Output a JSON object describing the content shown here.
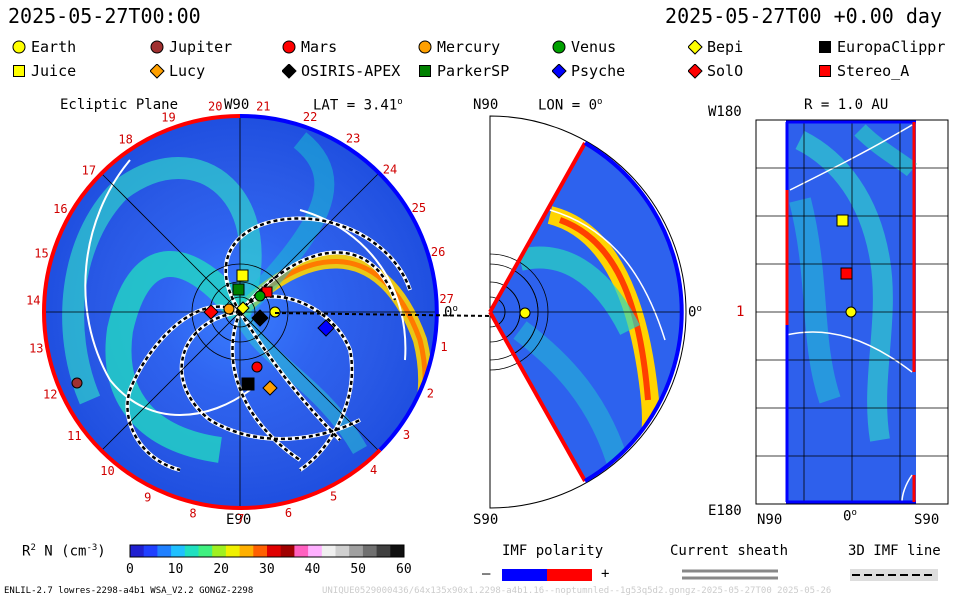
{
  "header": {
    "datetime": "2025-05-27T00:00",
    "offset": "2025-05-27T00 +0.00 day"
  },
  "legend": [
    {
      "label": "Earth",
      "shape": "circle",
      "color": "#ffff00"
    },
    {
      "label": "Jupiter",
      "shape": "circle",
      "color": "#a03030"
    },
    {
      "label": "Mars",
      "shape": "circle",
      "color": "#ff0000"
    },
    {
      "label": "Mercury",
      "shape": "circle",
      "color": "#ffa000"
    },
    {
      "label": "Venus",
      "shape": "circle",
      "color": "#00a000"
    },
    {
      "label": "Bepi",
      "shape": "diamond",
      "color": "#ffff00"
    },
    {
      "label": "EuropaClippr",
      "shape": "square",
      "color": "#000000"
    },
    {
      "label": "Juice",
      "shape": "square",
      "color": "#ffff00"
    },
    {
      "label": "Lucy",
      "shape": "diamond",
      "color": "#ffa000"
    },
    {
      "label": "OSIRIS-APEX",
      "shape": "diamond",
      "color": "#000000"
    },
    {
      "label": "ParkerSP",
      "shape": "square",
      "color": "#008000"
    },
    {
      "label": "Psyche",
      "shape": "diamond",
      "color": "#0000ff"
    },
    {
      "label": "SolO",
      "shape": "diamond",
      "color": "#ff0000"
    },
    {
      "label": "Stereo_A",
      "shape": "square",
      "color": "#ff0000"
    }
  ],
  "ecliptic": {
    "title": "Ecliptic Plane",
    "top_label": "W90",
    "lat_label": "LAT = 3.41",
    "bottom_label": "E90",
    "carrington_ticks": [
      "20",
      "21",
      "22",
      "23",
      "24",
      "25",
      "26",
      "27",
      "1",
      "2",
      "3",
      "4",
      "5",
      "6",
      "7",
      "8",
      "9",
      "10",
      "11",
      "12",
      "13",
      "14",
      "15",
      "16",
      "17",
      "18",
      "19"
    ]
  },
  "meridional": {
    "top_label": "N90",
    "lon_label": "LON = 0",
    "bottom_label": "S90",
    "zero_left": "0",
    "zero_right": "0"
  },
  "sphere": {
    "title": "R = 1.0 AU",
    "top_label": "W180",
    "mid_label": "1",
    "bottom_label": "E180",
    "x_labels": [
      "N90",
      "0",
      "S90"
    ]
  },
  "colorbar": {
    "label": "R  N (cm  )",
    "ticks": [
      "0",
      "10",
      "20",
      "30",
      "40",
      "50",
      "60"
    ]
  },
  "imf": {
    "title": "IMF polarity",
    "minus": "–",
    "plus": "+",
    "colors": {
      "negative": "#0000ff",
      "positive": "#ff0000"
    }
  },
  "sheath": {
    "title": "Current sheath"
  },
  "imf3d": {
    "title": "3D IMF line"
  },
  "footer": {
    "left": "ENLIL-2.7 lowres-2298-a4b1 WSA_V2.2 GONGZ-2298",
    "right": "UNIQUE0529000436/64x135x90x1.2298-a4b1.16--noptumnled--1g53q5d2.gongz-2025-05-27T00   2025-05-26"
  }
}
